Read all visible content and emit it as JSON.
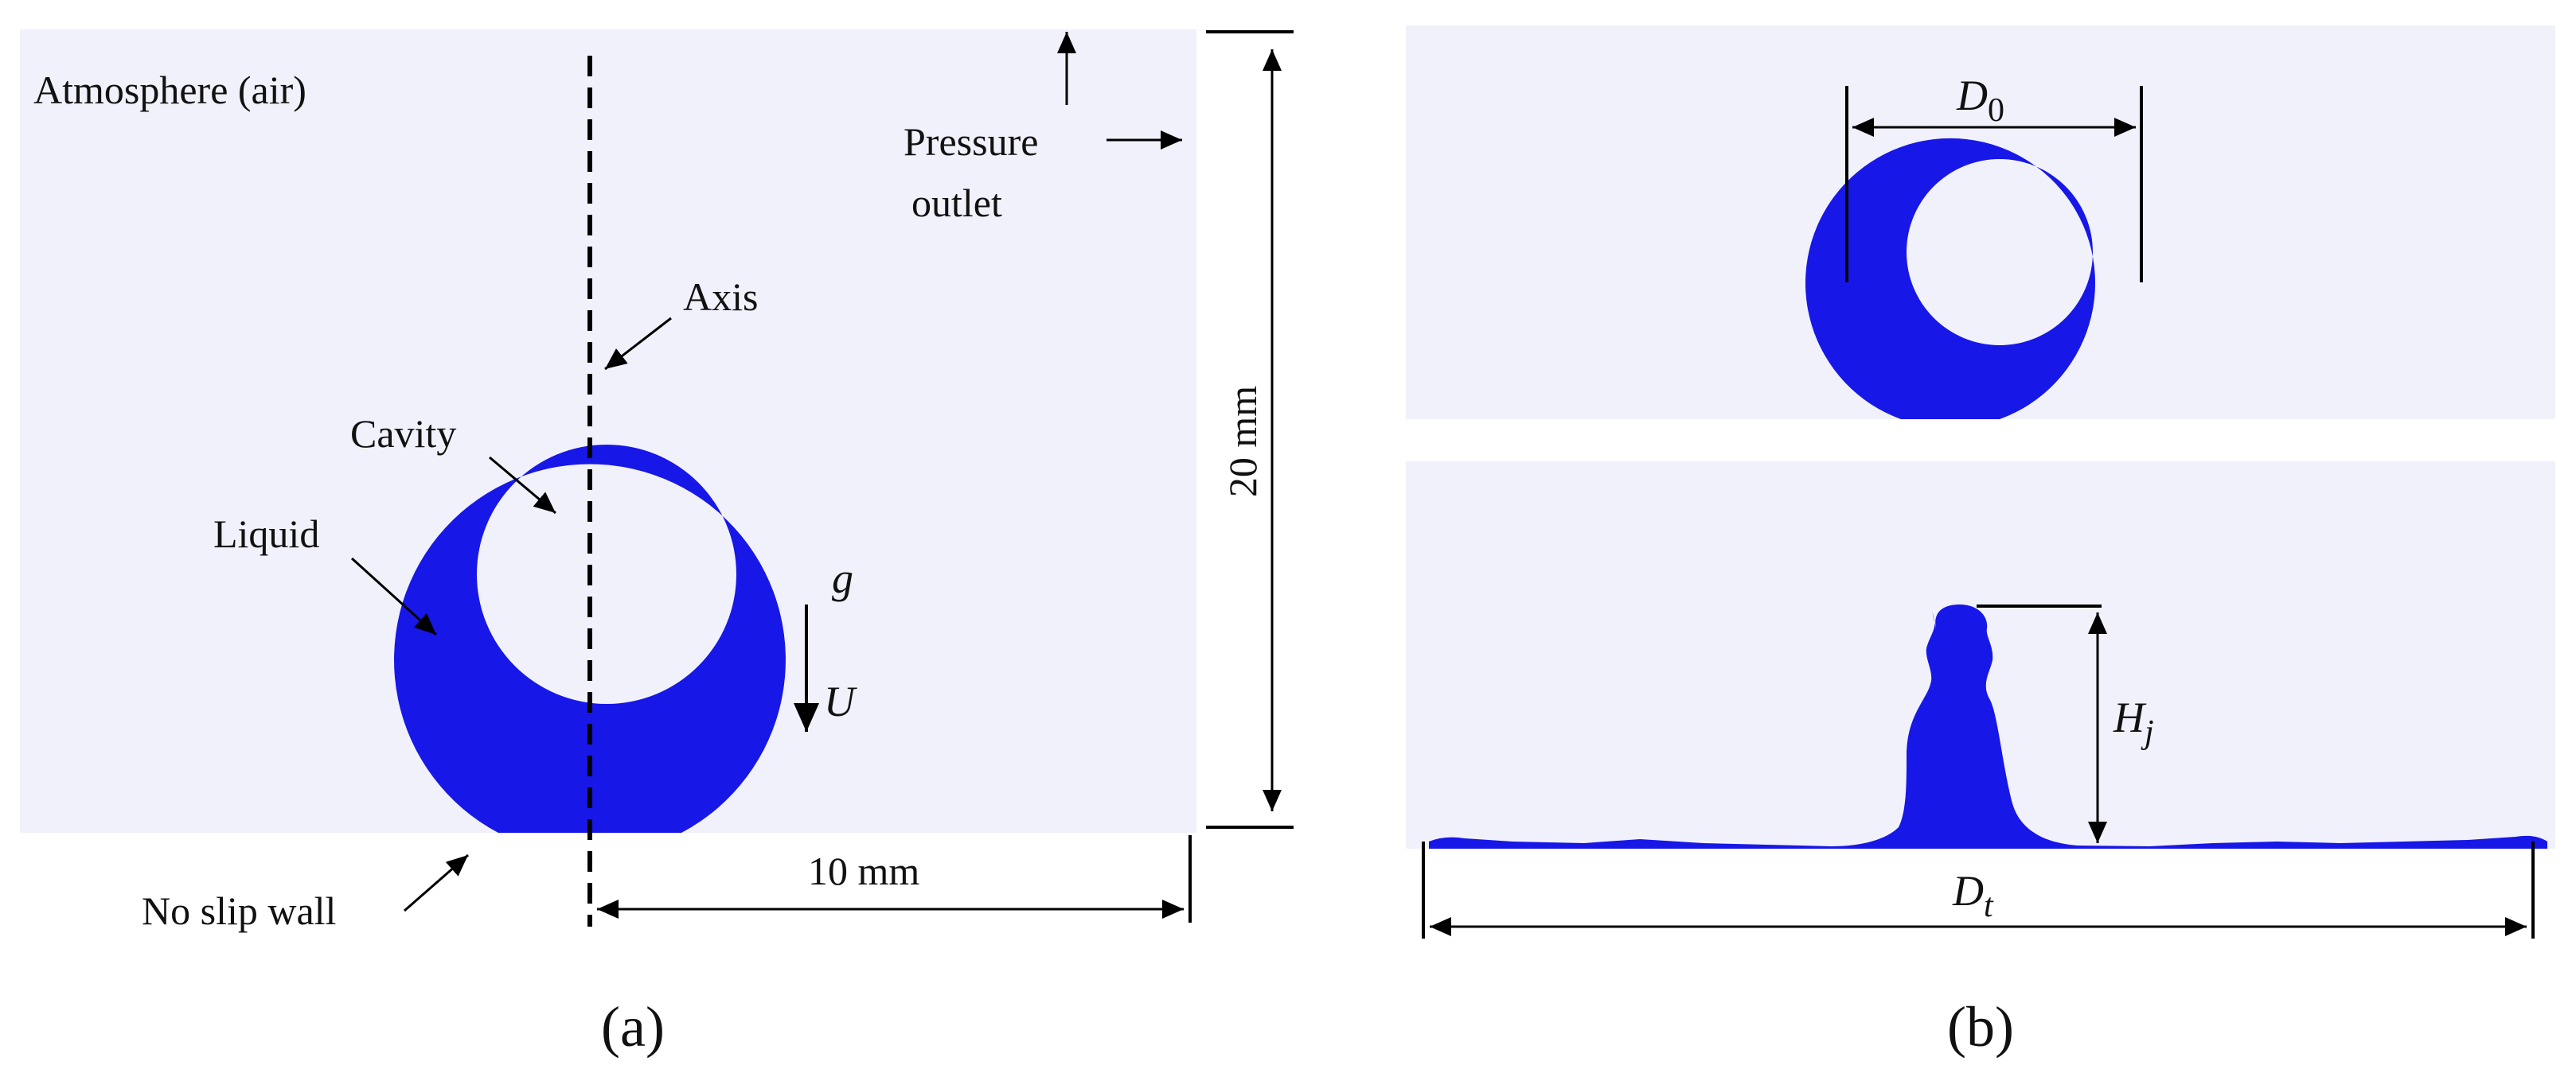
{
  "colors": {
    "domain_background": "#f1f1fb",
    "liquid": "#1717e8",
    "page_background": "#ffffff",
    "lines": "#000000"
  },
  "panel_a": {
    "atmosphere_label": "Atmosphere (air)",
    "pressure_label_line1": "Pressure",
    "pressure_label_line2": "outlet",
    "axis_label": "Axis",
    "cavity_label": "Cavity",
    "liquid_label": "Liquid",
    "gravity_symbol": "g",
    "velocity_symbol": "U",
    "height_dimension": "20 mm",
    "width_dimension": "10 mm",
    "wall_label": "No slip wall",
    "caption": "(a)"
  },
  "panel_b": {
    "initial_diameter_symbol": "D",
    "initial_diameter_subscript": "0",
    "jet_height_symbol": "H",
    "jet_height_subscript": "j",
    "spread_diameter_symbol": "D",
    "spread_diameter_subscript": "t",
    "caption": "(b)"
  }
}
